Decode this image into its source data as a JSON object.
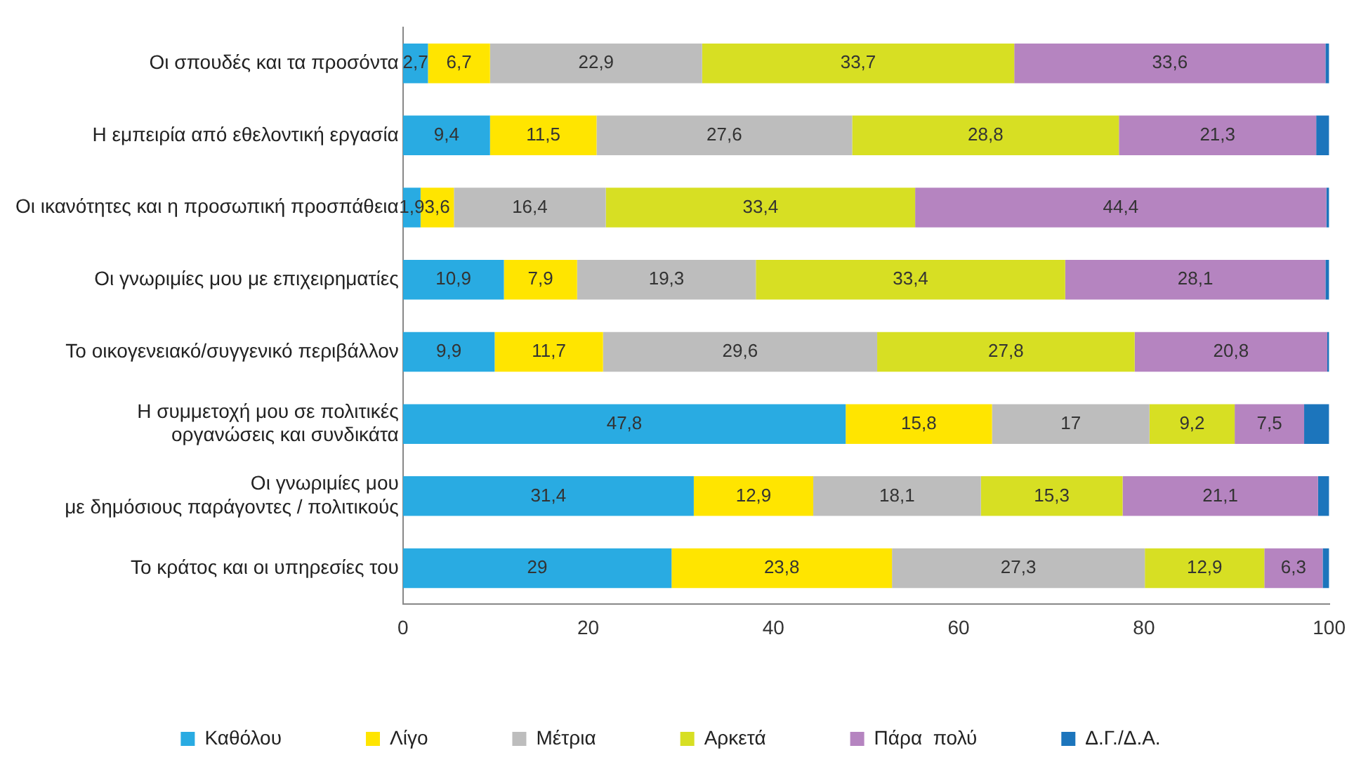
{
  "chart_data": {
    "type": "bar",
    "orientation": "horizontal",
    "stacked": true,
    "categories": [
      "Οι σπουδές και τα προσόντα",
      "Η εμπειρία από εθελοντική εργασία",
      "Οι ικανότητες και η προσωπική προσπάθεια",
      "Οι γνωριμίες μου με επιχειρηματίες",
      "Το οικογενειακό/συγγενικό περιβάλλον",
      "Η συμμετοχή μου σε πολιτικές\nοργανώσεις και συνδικάτα",
      "Οι γνωριμίες μου\nμε δημόσιους παράγοντες / πολιτικούς",
      "Το κράτος και οι υπηρεσίες του"
    ],
    "series": [
      {
        "name": "Καθόλου",
        "color": "#29abe2",
        "values": [
          2.7,
          9.4,
          1.9,
          10.9,
          9.9,
          47.8,
          31.4,
          29
        ],
        "value_labels": [
          "2,7",
          "9,4",
          "1,9",
          "10,9",
          "9,9",
          "47,8",
          "31,4",
          "29"
        ]
      },
      {
        "name": "Λίγο",
        "color": "#ffe500",
        "values": [
          6.7,
          11.5,
          3.6,
          7.9,
          11.7,
          15.8,
          12.9,
          23.8
        ],
        "value_labels": [
          "6,7",
          "11,5",
          "3,6",
          "7,9",
          "11,7",
          "15,8",
          "12,9",
          "23,8"
        ]
      },
      {
        "name": "Μέτρια",
        "color": "#bdbdbd",
        "values": [
          22.9,
          27.6,
          16.4,
          19.3,
          29.6,
          17,
          18.1,
          27.3
        ],
        "value_labels": [
          "22,9",
          "27,6",
          "16,4",
          "19,3",
          "29,6",
          "17",
          "18,1",
          "27,3"
        ]
      },
      {
        "name": "Αρκετά",
        "color": "#d7df23",
        "values": [
          33.7,
          28.8,
          33.4,
          33.4,
          27.8,
          9.2,
          15.3,
          12.9
        ],
        "value_labels": [
          "33,7",
          "28,8",
          "33,4",
          "33,4",
          "27,8",
          "9,2",
          "15,3",
          "12,9"
        ]
      },
      {
        "name": "Πάρα  πολύ",
        "color": "#b584c0",
        "values": [
          33.6,
          21.3,
          44.4,
          28.1,
          20.8,
          7.5,
          21.1,
          6.3
        ],
        "value_labels": [
          "33,6",
          "21,3",
          "44,4",
          "28,1",
          "20,8",
          "7,5",
          "21,1",
          "6,3"
        ]
      },
      {
        "name": "Δ.Γ./Δ.Α.",
        "color": "#1c75bc",
        "values": [
          0.4,
          1.4,
          0.3,
          0.4,
          0.2,
          2.7,
          1.2,
          0.7
        ]
      }
    ],
    "xlim": [
      0,
      100
    ],
    "xticks": [
      0,
      20,
      40,
      60,
      80,
      100
    ],
    "grid": false,
    "legend": "bottom"
  }
}
